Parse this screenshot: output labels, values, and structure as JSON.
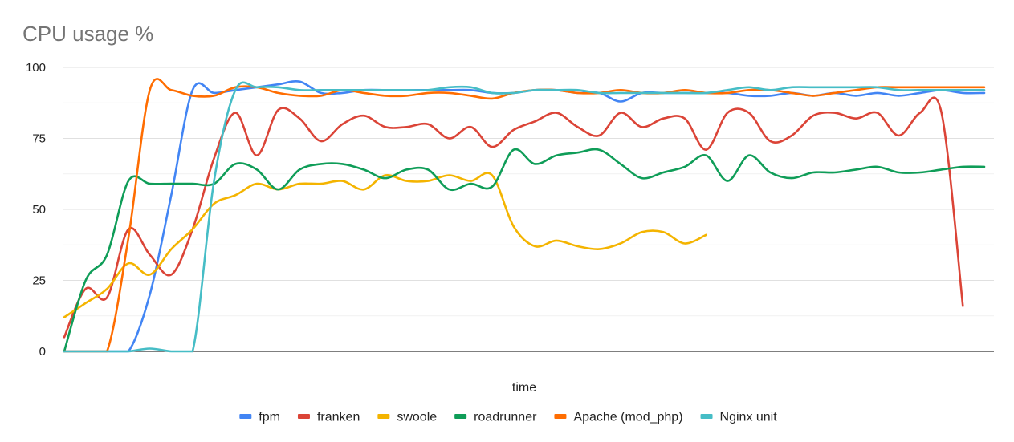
{
  "chart_data": {
    "type": "line",
    "title": "CPU usage %",
    "xlabel": "time",
    "ylabel": "",
    "ylim": [
      0,
      100
    ],
    "yticks": [
      0,
      25,
      50,
      75,
      100
    ],
    "grid": true,
    "legend_position": "bottom",
    "x_count": 44,
    "series": [
      {
        "name": "fpm",
        "color": "#4285f4",
        "values": [
          0,
          0,
          0,
          0,
          20,
          55,
          92,
          91,
          92,
          93,
          94,
          95,
          91,
          91,
          92,
          92,
          92,
          92,
          92,
          92,
          91,
          91,
          92,
          92,
          91,
          91,
          88,
          91,
          91,
          91,
          91,
          91,
          90,
          90,
          91,
          90,
          91,
          90,
          91,
          90,
          91,
          92,
          91,
          91
        ]
      },
      {
        "name": "franken",
        "color": "#db4437",
        "values": [
          5,
          22,
          19,
          43,
          34,
          27,
          43,
          68,
          84,
          69,
          85,
          82,
          74,
          80,
          83,
          79,
          79,
          80,
          75,
          79,
          72,
          78,
          81,
          84,
          79,
          76,
          84,
          79,
          82,
          82,
          71,
          84,
          84,
          74,
          76,
          83,
          84,
          82,
          84,
          76,
          84,
          84,
          16,
          null
        ]
      },
      {
        "name": "swoole",
        "color": "#f4b400",
        "values": [
          12,
          17,
          22,
          31,
          27,
          36,
          43,
          52,
          55,
          59,
          57,
          59,
          59,
          60,
          57,
          62,
          60,
          60,
          62,
          60,
          62,
          44,
          37,
          39,
          37,
          36,
          38,
          42,
          42,
          38,
          41,
          null,
          null,
          null,
          null,
          null,
          null,
          null,
          null,
          null,
          null,
          null,
          null,
          null
        ]
      },
      {
        "name": "roadrunner",
        "color": "#0f9d58",
        "values": [
          0,
          25,
          34,
          60,
          59,
          59,
          59,
          59,
          66,
          64,
          57,
          64,
          66,
          66,
          64,
          61,
          64,
          64,
          57,
          59,
          58,
          71,
          66,
          69,
          70,
          71,
          66,
          61,
          63,
          65,
          69,
          60,
          69,
          63,
          61,
          63,
          63,
          64,
          65,
          63,
          63,
          64,
          65,
          65
        ]
      },
      {
        "name": "Apache (mod_php)",
        "color": "#ff6d01",
        "values": [
          0,
          0,
          0,
          40,
          92,
          92,
          90,
          90,
          93,
          93,
          91,
          90,
          90,
          92,
          91,
          90,
          90,
          91,
          91,
          90,
          89,
          91,
          92,
          92,
          91,
          91,
          92,
          91,
          91,
          92,
          91,
          91,
          92,
          92,
          91,
          90,
          91,
          92,
          93,
          93,
          93,
          93,
          93,
          93
        ]
      },
      {
        "name": "Nginx unit",
        "color": "#46bdc6",
        "values": [
          0,
          0,
          0,
          0,
          1,
          0,
          0,
          60,
          92,
          93,
          93,
          92,
          92,
          92,
          92,
          92,
          92,
          92,
          93,
          93,
          91,
          91,
          92,
          92,
          92,
          91,
          91,
          91,
          91,
          91,
          91,
          92,
          93,
          92,
          93,
          93,
          93,
          93,
          93,
          92,
          92,
          92,
          92,
          92
        ]
      }
    ]
  }
}
